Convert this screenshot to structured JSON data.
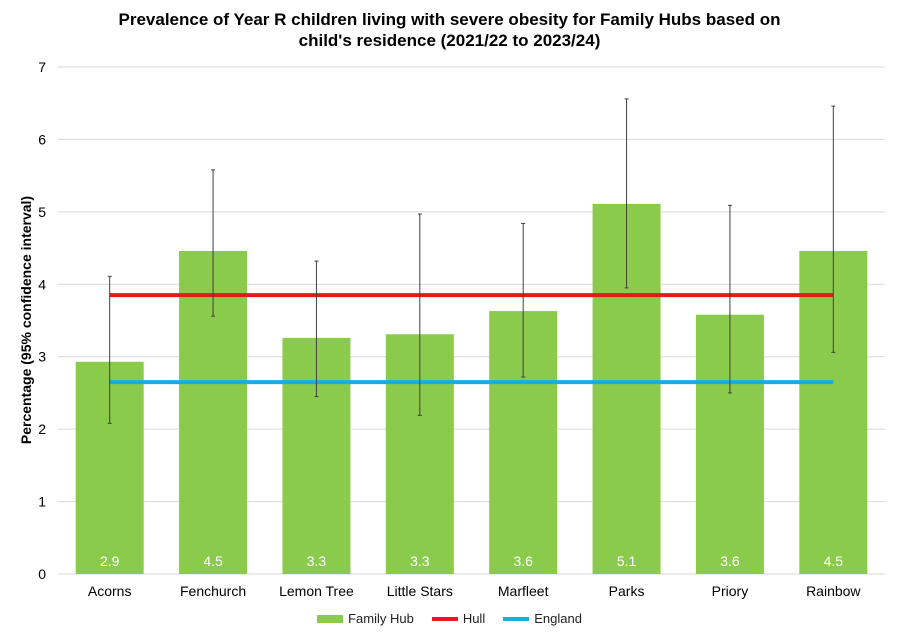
{
  "colors": {
    "bar": "#8BCB4C",
    "hull": "#E8191B",
    "england": "#1AACE0",
    "grid": "#D9D9D9",
    "error": "#404040"
  },
  "chart_data": {
    "type": "bar",
    "title_lines": [
      "Prevalence of Year R children living with severe obesity for Family Hubs based on",
      "child's residence (2021/22 to 2023/24)"
    ],
    "xlabel": "",
    "ylabel": "Percentage (95% confidence interval)",
    "ylim": [
      0,
      7
    ],
    "yticks": [
      0,
      1,
      2,
      3,
      4,
      5,
      6,
      7
    ],
    "categories": [
      "Acorns",
      "Fenchurch",
      "Lemon Tree",
      "Little Stars",
      "Marfleet",
      "Parks",
      "Priory",
      "Rainbow"
    ],
    "series": [
      {
        "name": "Family Hub",
        "kind": "bar",
        "values": [
          2.93,
          4.46,
          3.26,
          3.31,
          3.63,
          5.11,
          3.58,
          4.46
        ],
        "labels": [
          "2.9",
          "4.5",
          "3.3",
          "3.3",
          "3.6",
          "5.1",
          "3.6",
          "4.5"
        ],
        "ci_lower": [
          2.08,
          3.56,
          2.45,
          2.19,
          2.72,
          3.95,
          2.5,
          3.06
        ],
        "ci_upper": [
          4.11,
          5.58,
          4.32,
          4.97,
          4.84,
          6.56,
          5.09,
          6.46
        ]
      },
      {
        "name": "Hull",
        "kind": "line",
        "value": 3.85
      },
      {
        "name": "England",
        "kind": "line",
        "value": 2.65
      }
    ],
    "legend_position": "bottom"
  }
}
